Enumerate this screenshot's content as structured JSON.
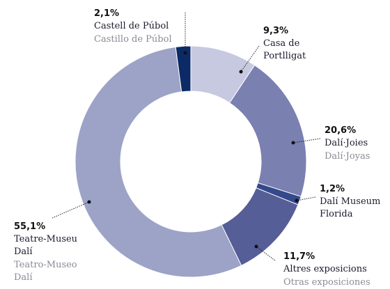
{
  "chart_data": {
    "type": "donut",
    "categories": [
      "Casa de\nPortlligat",
      "Dalí·Joies",
      "Dalí Museum\nFlorida",
      "Altres exposicions",
      "Teatre-Museu\nDalí",
      "Castell de Púbol"
    ],
    "categories_es": [
      null,
      "Dalí·Joyas",
      null,
      "Otras exposiciones",
      "Teatro-Museo\nDalí",
      "Castillo de Púbol"
    ],
    "values": [
      9.3,
      20.6,
      1.2,
      11.7,
      55.1,
      2.1
    ],
    "value_labels": [
      "9,3%",
      "20,6%",
      "1,2%",
      "11,7%",
      "55,1%",
      "2,1%"
    ],
    "colors": [
      "#c6c9e0",
      "#7a80b0",
      "#34498c",
      "#555e96",
      "#9ca3c7",
      "#0b2a66"
    ]
  }
}
